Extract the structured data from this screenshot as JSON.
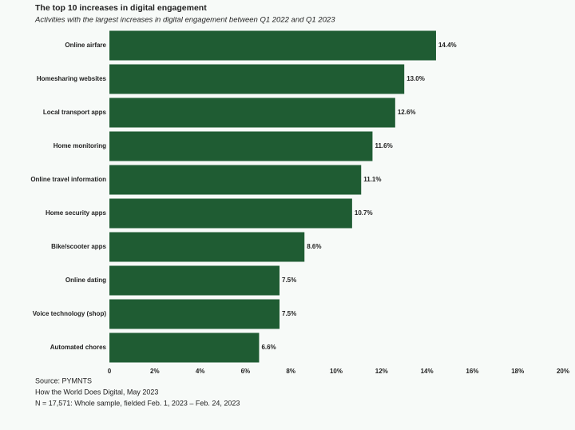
{
  "chart_data": {
    "type": "barh",
    "title": "The top 10 increases in digital engagement",
    "subtitle": "Activities with the largest increases in digital engagement between Q1 2022 and Q1 2023",
    "categories": [
      "Online airfare",
      "Homesharing websites",
      "Local transport apps",
      "Home monitoring",
      "Online travel information",
      "Home security apps",
      "Bike/scooter apps",
      "Online dating",
      "Voice technology (shop)",
      "Automated chores"
    ],
    "values": [
      14.4,
      13.0,
      12.6,
      11.6,
      11.1,
      10.7,
      8.6,
      7.5,
      7.5,
      6.6
    ],
    "value_labels": [
      "14.4%",
      "13.0%",
      "12.6%",
      "11.6%",
      "11.1%",
      "10.7%",
      "8.6%",
      "7.5%",
      "7.5%",
      "6.6%"
    ],
    "color": "#1f5c33",
    "xlim": [
      0,
      20
    ],
    "xticks": [
      0,
      {
        "value": 2,
        "label": "2%"
      },
      {
        "value": 4,
        "label": "4%"
      },
      {
        "value": 6,
        "label": "6%"
      },
      {
        "value": 8,
        "label": "8%"
      },
      {
        "value": 10,
        "label": "10%"
      },
      {
        "value": 12,
        "label": "12%"
      },
      {
        "value": 14,
        "label": "14%"
      },
      {
        "value": 16,
        "label": "16%"
      },
      {
        "value": 18,
        "label": "18%"
      },
      {
        "value": 20,
        "label": "20%"
      }
    ],
    "notes": [
      "Source: PYMNTS",
      "How the World Does Digital, May 2023",
      "N = 17,571: Whole sample, fielded Feb. 1, 2023 – Feb. 24, 2023"
    ]
  }
}
